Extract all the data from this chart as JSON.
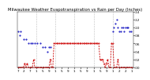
{
  "title": "Milwaukee Weather Evapotranspiration vs Rain per Day (Inches)",
  "blue_x": [
    1,
    2,
    3,
    4,
    5,
    6,
    7,
    8,
    9,
    10,
    11,
    12,
    13,
    14,
    15,
    16,
    17,
    18,
    19,
    20,
    21,
    22,
    23,
    24,
    25,
    26,
    27,
    28,
    29,
    30,
    32,
    34,
    36,
    38,
    40,
    42,
    44,
    46,
    48,
    50,
    52,
    54,
    56,
    58,
    60,
    62,
    64,
    65,
    66,
    67,
    68,
    69,
    70,
    71,
    72,
    73,
    74,
    75,
    76,
    77,
    78,
    79,
    80,
    81,
    82,
    83,
    84,
    85,
    86,
    87,
    88,
    89,
    90
  ],
  "blue_y": [
    0.09,
    0.08,
    0.09,
    0.0,
    0.07,
    0.0,
    0.07,
    0.0,
    0.06,
    0.0,
    0.06,
    0.06,
    0.0,
    0.06,
    0.0,
    0.06,
    0.0,
    0.06,
    0.0,
    0.05,
    0.0,
    0.05,
    0.0,
    0.04,
    0.05,
    0.05,
    0.0,
    0.0,
    0.0,
    0.0,
    0.0,
    0.0,
    0.0,
    0.0,
    0.0,
    0.0,
    0.0,
    0.0,
    0.0,
    0.0,
    0.0,
    0.0,
    0.0,
    0.0,
    0.0,
    0.0,
    0.0,
    0.0,
    0.0,
    0.0,
    0.0,
    0.0,
    0.0,
    0.0,
    0.0,
    0.0,
    0.0,
    0.09,
    0.1,
    0.11,
    0.12,
    0.1,
    0.09,
    0.09,
    0.1,
    0.1,
    0.09,
    0.1,
    0.1,
    0.1,
    0.09,
    0.09,
    0.0
  ],
  "red_x": [
    1,
    2,
    3,
    4,
    5,
    6,
    7,
    8,
    9,
    10,
    11,
    12,
    13,
    14,
    15,
    16,
    17,
    18,
    19,
    20,
    21,
    22,
    23,
    24,
    25,
    26,
    27,
    28,
    29,
    30,
    31,
    32,
    33,
    34,
    35,
    36,
    37,
    38,
    39,
    40,
    41,
    42,
    43,
    44,
    45,
    46,
    47,
    48,
    49,
    50,
    51,
    52,
    53,
    54,
    55,
    56,
    57,
    58,
    59,
    60,
    61,
    62,
    63,
    64,
    65,
    66,
    67,
    68,
    69,
    70,
    71,
    72,
    73,
    74,
    75,
    76,
    77,
    78,
    79,
    80,
    81,
    82,
    83,
    84,
    85,
    86,
    87,
    88,
    89,
    90
  ],
  "red_y": [
    0.0,
    0.0,
    0.0,
    0.0,
    0.0,
    0.01,
    0.0,
    0.01,
    0.0,
    0.0,
    0.0,
    0.0,
    0.02,
    0.0,
    0.0,
    0.0,
    0.0,
    0.0,
    0.0,
    0.0,
    0.0,
    0.0,
    0.0,
    0.0,
    0.0,
    0.02,
    0.0,
    0.0,
    0.06,
    0.06,
    0.06,
    0.06,
    0.06,
    0.06,
    0.06,
    0.06,
    0.06,
    0.06,
    0.06,
    0.06,
    0.06,
    0.06,
    0.06,
    0.06,
    0.06,
    0.06,
    0.06,
    0.06,
    0.06,
    0.06,
    0.06,
    0.06,
    0.06,
    0.06,
    0.06,
    0.06,
    0.06,
    0.06,
    0.06,
    0.06,
    0.06,
    0.06,
    0.06,
    0.06,
    0.02,
    0.02,
    0.02,
    0.01,
    0.0,
    0.01,
    0.02,
    0.0,
    0.0,
    0.06,
    0.06,
    0.0,
    0.0,
    0.0,
    0.02,
    0.0,
    0.0,
    0.0,
    0.0,
    0.0,
    0.0,
    0.0,
    0.0,
    0.0,
    0.0,
    0.0
  ],
  "vline_positions": [
    15,
    30,
    45,
    60,
    75
  ],
  "ylim": [
    0.0,
    0.14
  ],
  "ytick_positions": [
    0.0,
    0.02,
    0.04,
    0.06,
    0.08,
    0.1,
    0.12,
    0.14
  ],
  "ytick_labels": [
    ".00",
    ".02",
    ".04",
    ".06",
    ".08",
    ".10",
    ".12",
    ".14"
  ],
  "xtick_positions": [
    1,
    5,
    10,
    15,
    20,
    25,
    30,
    35,
    40,
    45,
    50,
    55,
    60,
    65,
    70,
    75,
    80,
    85,
    90
  ],
  "xtick_labels": [
    "7",
    "2",
    "7",
    "1",
    "5",
    "9",
    "1",
    "5",
    "9",
    "1",
    "5",
    "9",
    "1",
    "5",
    "9",
    "1",
    "2",
    "2",
    "1"
  ],
  "blue_color": "#0000bb",
  "red_color": "#cc0000",
  "grid_color": "#888888",
  "bg_color": "#ffffff",
  "title_fontsize": 3.8,
  "tick_fontsize": 3.0
}
